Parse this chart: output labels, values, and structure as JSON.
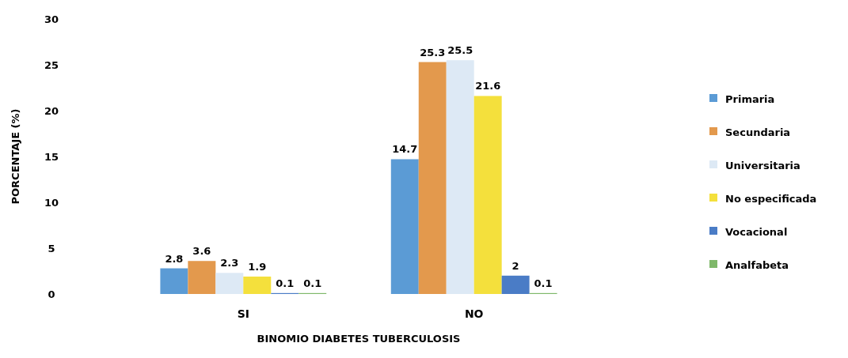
{
  "chart_data": {
    "type": "bar",
    "xlabel": "BINOMIO DIABETES TUBERCULOSIS",
    "ylabel": "PORCENTAJE (%)",
    "categories": [
      "SI",
      "NO"
    ],
    "series": [
      {
        "name": "Primaria",
        "color": "#5b9bd5",
        "values": [
          2.8,
          14.7
        ]
      },
      {
        "name": "Secundaria",
        "color": "#e3994d",
        "values": [
          3.6,
          25.3
        ]
      },
      {
        "name": "Universitaria",
        "color": "#dde9f5",
        "values": [
          2.3,
          25.5
        ]
      },
      {
        "name": "No especificada",
        "color": "#f4e03c",
        "values": [
          1.9,
          21.6
        ]
      },
      {
        "name": "Vocacional",
        "color": "#4a7cc6",
        "values": [
          0.1,
          2
        ]
      },
      {
        "name": "Analfabeta",
        "color": "#7fb86a",
        "values": [
          0.1,
          0.1
        ]
      }
    ],
    "ylim": [
      0,
      30
    ],
    "yticks": [
      0,
      5,
      10,
      15,
      20,
      25,
      30
    ],
    "data_labels": true,
    "legend": "right",
    "grid": false
  }
}
